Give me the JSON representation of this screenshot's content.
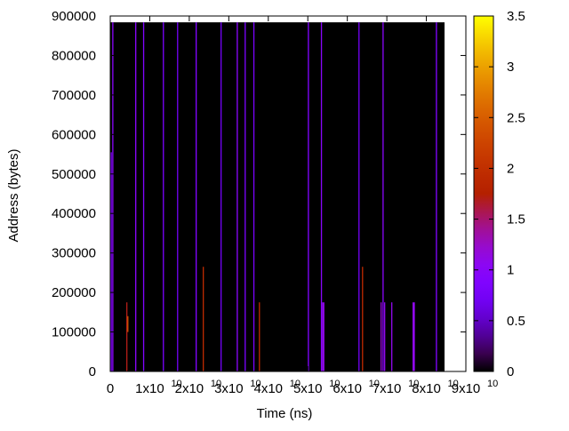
{
  "chart_data": {
    "type": "heatmap",
    "x_label": "Time (ns)",
    "y_label": "Address (bytes)",
    "xlim": [
      0,
      90000000000
    ],
    "ylim": [
      0,
      900000
    ],
    "clim": [
      0,
      3.5
    ],
    "xticks": [
      0,
      {
        "value": 10000000000,
        "label": "1x10",
        "exponent": "10"
      },
      {
        "value": 20000000000,
        "label": "2x10",
        "exponent": "10"
      },
      {
        "value": 30000000000,
        "label": "3x10",
        "exponent": "10"
      },
      {
        "value": 40000000000,
        "label": "4x10",
        "exponent": "10"
      },
      {
        "value": 50000000000,
        "label": "5x10",
        "exponent": "10"
      },
      {
        "value": 60000000000,
        "label": "6x10",
        "exponent": "10"
      },
      {
        "value": 70000000000,
        "label": "7x10",
        "exponent": "10"
      },
      {
        "value": 80000000000,
        "label": "8x10",
        "exponent": "10"
      },
      {
        "value": 90000000000,
        "label": "9x10",
        "exponent": "10"
      }
    ],
    "yticks": [
      0,
      100000,
      200000,
      300000,
      400000,
      500000,
      600000,
      700000,
      800000,
      900000
    ],
    "cticks": [
      0,
      0.5,
      1,
      1.5,
      2,
      2.5,
      3,
      3.5
    ],
    "palette": "gnuplot-default",
    "t_start": [
      0,
      0,
      500000000,
      6300000000,
      8300000000,
      13300000000,
      16900000000,
      21600000000,
      27900000000,
      32000000000,
      34000000000,
      36200000000,
      50000000000,
      53300000000,
      62800000000,
      68900000000,
      82400000000,
      4050000000,
      4300000000,
      23400000000,
      37600000000,
      53600000000,
      63700000000,
      68400000000,
      69300000000,
      71100000000,
      76500000000
    ],
    "t_end": [
      84600000000,
      400000000,
      800000000,
      6600000000,
      8600000000,
      13600000000,
      17200000000,
      21900000000,
      28200000000,
      32300000000,
      34300000000,
      36500000000,
      50300000000,
      53600000000,
      63100000000,
      69200000000,
      82700000000,
      4350000000,
      4600000000,
      23700000000,
      37900000000,
      54200000000,
      64000000000,
      68700000000,
      69600000000,
      71400000000,
      77100000000
    ],
    "addr_low": [
      0,
      0,
      0,
      0,
      0,
      0,
      0,
      0,
      0,
      0,
      0,
      0,
      0,
      0,
      0,
      0,
      0,
      0,
      100000,
      0,
      0,
      0,
      0,
      0,
      0,
      0,
      0
    ],
    "addr_high": [
      884000,
      555000,
      884000,
      884000,
      884000,
      884000,
      884000,
      884000,
      884000,
      884000,
      884000,
      884000,
      884000,
      884000,
      884000,
      884000,
      884000,
      175000,
      140000,
      265000,
      175000,
      175000,
      265000,
      175000,
      175000,
      175000,
      175000
    ],
    "values": [
      0,
      0.9,
      1,
      1,
      0.9,
      0.8,
      0.7,
      0.9,
      0.7,
      1,
      0.8,
      0.8,
      0.9,
      1,
      0.7,
      1,
      0.9,
      1.7,
      2.4,
      1.9,
      1.9,
      1.1,
      1.9,
      1.2,
      1.1,
      1.1,
      1.1
    ]
  }
}
